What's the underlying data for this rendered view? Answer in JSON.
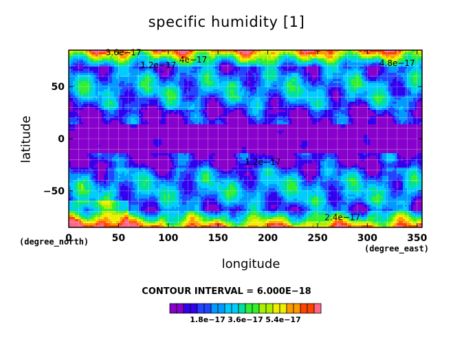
{
  "chart_data": {
    "type": "heatmap",
    "title": "specific humidity [1]",
    "xlabel": "longitude",
    "ylabel": "latitude",
    "x_units": "(degree_east)",
    "y_units": "(degree_north)",
    "xlim": [
      0,
      355
    ],
    "ylim": [
      -85,
      85
    ],
    "x_ticks": [
      0,
      50,
      100,
      150,
      200,
      250,
      300,
      350
    ],
    "y_ticks": [
      -50,
      0,
      50
    ],
    "contour_interval_text": "CONTOUR INTERVAL = 6.000E−18",
    "contour_interval": 6e-18,
    "levels": [
      0,
      6e-18,
      1.2e-17,
      1.8e-17,
      2.4e-17,
      3e-17,
      3.6e-17,
      4.2e-17,
      4.8e-17,
      5.4e-17,
      6e-17,
      6.6e-17
    ],
    "colorbar_labels": [
      {
        "value": 1.8e-17,
        "text": "1.8e−17"
      },
      {
        "value": 3.6e-17,
        "text": "3.6e−17"
      },
      {
        "value": 5.4e-17,
        "text": "5.4e−17"
      }
    ],
    "contour_labels": [
      {
        "lon": 55,
        "lat": 80,
        "text": "3.6e−17"
      },
      {
        "lon": 90,
        "lat": 68,
        "text": "1.2e−17"
      },
      {
        "lon": 125,
        "lat": 73,
        "text": "4e−17"
      },
      {
        "lon": 330,
        "lat": 70,
        "text": "4.8e−17"
      },
      {
        "lon": 195,
        "lat": -25,
        "text": "1.2e−17"
      },
      {
        "lon": 275,
        "lat": -78,
        "text": "2.4e−17"
      }
    ],
    "colormap": [
      "#8800cc",
      "#3300ee",
      "#2244ff",
      "#0099ff",
      "#00ccff",
      "#00e0a0",
      "#33ee33",
      "#aaee00",
      "#eeee00",
      "#ff9900",
      "#ff4400",
      "#ff6688"
    ],
    "grid": true
  }
}
